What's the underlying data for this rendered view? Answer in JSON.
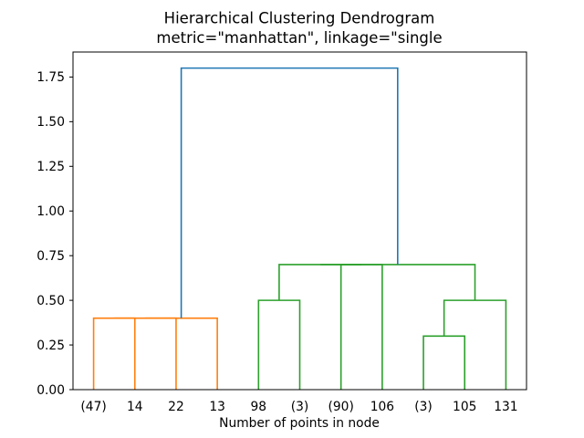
{
  "figure": {
    "title": "Hierarchical Clustering Dendrogram",
    "subtitle": "metric=\"manhattan\", linkage=\"single",
    "xlabel": "Number of points in node"
  },
  "chart_data": {
    "type": "dendrogram",
    "title": "Hierarchical Clustering Dendrogram",
    "subtitle": "metric=\"manhattan\", linkage=\"single",
    "xlabel": "Number of points in node",
    "ylabel": "",
    "leaf_labels": [
      "(47)",
      "14",
      "22",
      "13",
      "98",
      "(3)",
      "(90)",
      "106",
      "(3)",
      "105",
      "131"
    ],
    "leaf_positions": [
      5,
      15,
      25,
      35,
      45,
      55,
      65,
      75,
      85,
      95,
      105
    ],
    "xlim": [
      0,
      110
    ],
    "ylim": [
      0,
      1.89
    ],
    "yticks": [
      "0.00",
      "0.25",
      "0.50",
      "0.75",
      "1.00",
      "1.25",
      "1.50",
      "1.75"
    ],
    "grid": false,
    "legend": null,
    "colors": {
      "cluster_left": "#ff7f0e",
      "cluster_right": "#2ca02c",
      "root_link": "#1f77b4",
      "axes": "#000000",
      "background": "#ffffff"
    },
    "links": [
      {
        "color": "#ff7f0e",
        "x1": 5,
        "y1": 0,
        "x2": 15,
        "y2": 0,
        "height": 0.4
      },
      {
        "color": "#ff7f0e",
        "x1": 10,
        "y1": 0.4,
        "x2": 25,
        "y2": 0,
        "height": 0.4
      },
      {
        "color": "#ff7f0e",
        "x1": 17.5,
        "y1": 0.4,
        "x2": 35,
        "y2": 0,
        "height": 0.4
      },
      {
        "color": "#2ca02c",
        "x1": 45,
        "y1": 0,
        "x2": 55,
        "y2": 0,
        "height": 0.5
      },
      {
        "color": "#2ca02c",
        "x1": 65,
        "y1": 0,
        "x2": 75,
        "y2": 0,
        "height": 0.7
      },
      {
        "color": "#2ca02c",
        "x1": 50,
        "y1": 0.5,
        "x2": 70,
        "y2": 0.7,
        "height": 0.7
      },
      {
        "color": "#2ca02c",
        "x1": 85,
        "y1": 0,
        "x2": 95,
        "y2": 0,
        "height": 0.3
      },
      {
        "color": "#2ca02c",
        "x1": 90,
        "y1": 0.3,
        "x2": 105,
        "y2": 0,
        "height": 0.5
      },
      {
        "color": "#2ca02c",
        "x1": 60,
        "y1": 0.7,
        "x2": 97.5,
        "y2": 0.5,
        "height": 0.7
      },
      {
        "color": "#1f77b4",
        "x1": 26.25,
        "y1": 0.4,
        "x2": 78.75,
        "y2": 0.7,
        "height": 1.8
      }
    ]
  }
}
